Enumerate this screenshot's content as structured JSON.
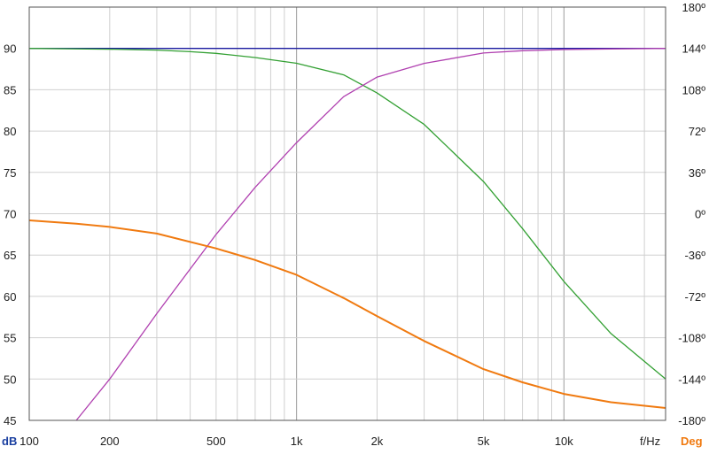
{
  "chart_data": {
    "type": "line",
    "x_scale": "log",
    "xlim": [
      100,
      24000
    ],
    "ylim": [
      45,
      95
    ],
    "y2lim": [
      -180,
      180
    ],
    "xlabel": "f/Hz",
    "ylabel": "dB",
    "y2label": "Deg",
    "grid": true,
    "legend": "none",
    "x_ticks": [
      {
        "value": 100,
        "label": "100"
      },
      {
        "value": 200,
        "label": "200"
      },
      {
        "value": 500,
        "label": "500"
      },
      {
        "value": 1000,
        "label": "1k"
      },
      {
        "value": 2000,
        "label": "2k"
      },
      {
        "value": 5000,
        "label": "5k"
      },
      {
        "value": 10000,
        "label": "10k"
      }
    ],
    "y_ticks": [
      {
        "value": 90,
        "label": "90"
      },
      {
        "value": 85,
        "label": "85"
      },
      {
        "value": 80,
        "label": "80"
      },
      {
        "value": 75,
        "label": "75"
      },
      {
        "value": 70,
        "label": "70"
      },
      {
        "value": 65,
        "label": "65"
      },
      {
        "value": 60,
        "label": "60"
      },
      {
        "value": 55,
        "label": "55"
      },
      {
        "value": 50,
        "label": "50"
      },
      {
        "value": 45,
        "label": "45"
      }
    ],
    "y2_ticks": [
      {
        "value": 180,
        "label": "180º"
      },
      {
        "value": 144,
        "label": "144º"
      },
      {
        "value": 108,
        "label": "108º"
      },
      {
        "value": 72,
        "label": "72º"
      },
      {
        "value": 36,
        "label": "36º"
      },
      {
        "value": 0,
        "label": "0º"
      },
      {
        "value": -36,
        "label": "-36º"
      },
      {
        "value": -72,
        "label": "-72º"
      },
      {
        "value": -108,
        "label": "-108º"
      },
      {
        "value": -144,
        "label": "-144º"
      },
      {
        "value": -180,
        "label": "-180º"
      }
    ],
    "series": [
      {
        "axis": "dB",
        "color": "#1a1aa0",
        "x": [
          100,
          200,
          500,
          1000,
          2000,
          5000,
          10000,
          24000
        ],
        "y": [
          90,
          90,
          90,
          90,
          90,
          90,
          90,
          90
        ]
      },
      {
        "axis": "dB",
        "color": "#33a033",
        "x": [
          100,
          200,
          300,
          400,
          500,
          700,
          1000,
          1500,
          2000,
          3000,
          5000,
          7000,
          10000,
          15000,
          24000
        ],
        "y": [
          90,
          89.9,
          89.8,
          89.6,
          89.4,
          88.9,
          88.2,
          86.8,
          84.6,
          80.8,
          73.9,
          68.2,
          61.8,
          55.5,
          50
        ]
      },
      {
        "axis": "Deg",
        "color": "#b040b0",
        "x": [
          150,
          200,
          300,
          500,
          700,
          1000,
          1500,
          2000,
          3000,
          5000,
          7000,
          10000,
          15000,
          24000
        ],
        "y": [
          -180,
          -144,
          -87,
          -18,
          23,
          62,
          102,
          119,
          131,
          140,
          142,
          143,
          143.5,
          144
        ]
      },
      {
        "axis": "dB",
        "color": "#f07a10",
        "x": [
          100,
          150,
          200,
          300,
          500,
          700,
          1000,
          1500,
          2000,
          3000,
          5000,
          7000,
          10000,
          15000,
          24000
        ],
        "y": [
          69.2,
          68.8,
          68.4,
          67.6,
          65.8,
          64.4,
          62.6,
          59.8,
          57.6,
          54.6,
          51.2,
          49.6,
          48.2,
          47.2,
          46.5
        ]
      }
    ]
  }
}
